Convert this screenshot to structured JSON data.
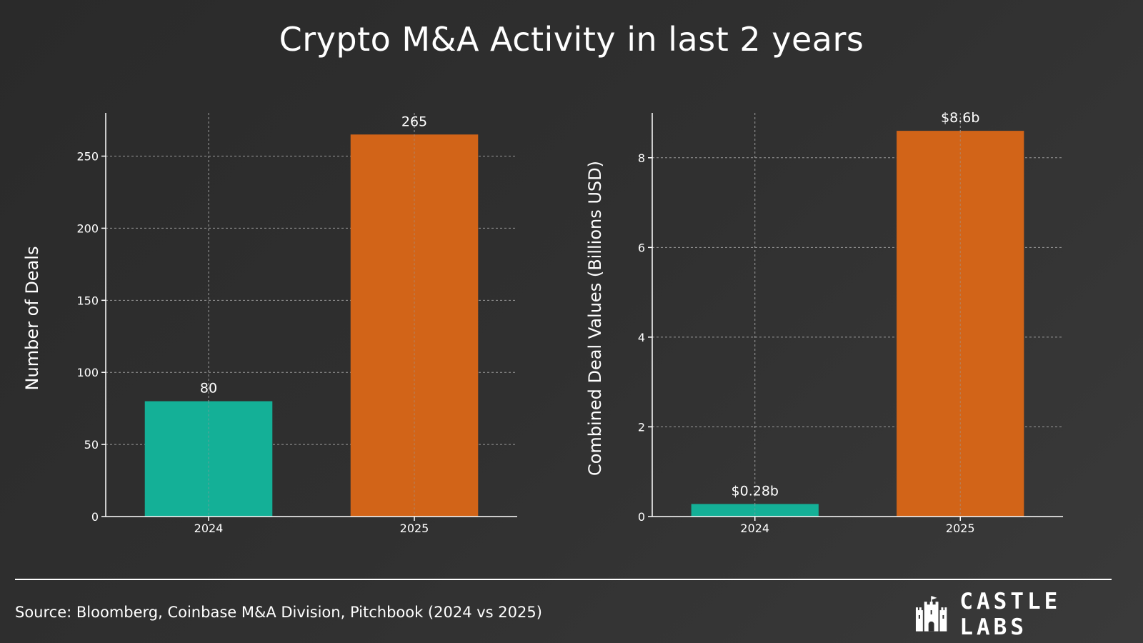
{
  "header": {
    "title": "Crypto M&A Activity in last 2 years"
  },
  "colors": {
    "y2024": "#14b097",
    "y2025": "#d26418",
    "grid": "#9a9a9a"
  },
  "chart_data": [
    {
      "type": "bar",
      "categories": [
        "2024",
        "2025"
      ],
      "values": [
        80,
        265
      ],
      "value_labels": [
        "80",
        "265"
      ],
      "ylabel": "Number of Deals",
      "ylim": [
        0,
        280
      ],
      "yticks": [
        0,
        50,
        100,
        150,
        200,
        250
      ],
      "ytick_labels": [
        "0",
        "50",
        "100",
        "150",
        "200",
        "250"
      ],
      "grid": true
    },
    {
      "type": "bar",
      "categories": [
        "2024",
        "2025"
      ],
      "values": [
        0.28,
        8.6
      ],
      "value_labels": [
        "$0.28b",
        "$8.6b"
      ],
      "ylabel": "Combined Deal Values (Billions USD)",
      "ylim": [
        0,
        9
      ],
      "yticks": [
        0,
        2,
        4,
        6,
        8
      ],
      "ytick_labels": [
        "0",
        "2",
        "4",
        "6",
        "8"
      ],
      "grid": true
    }
  ],
  "footer": {
    "source": "Source: Bloomberg, Coinbase M&A Division, Pitchbook (2024 vs 2025)",
    "logo_text": "CASTLE LABS",
    "logo_icon": "castle-icon"
  }
}
